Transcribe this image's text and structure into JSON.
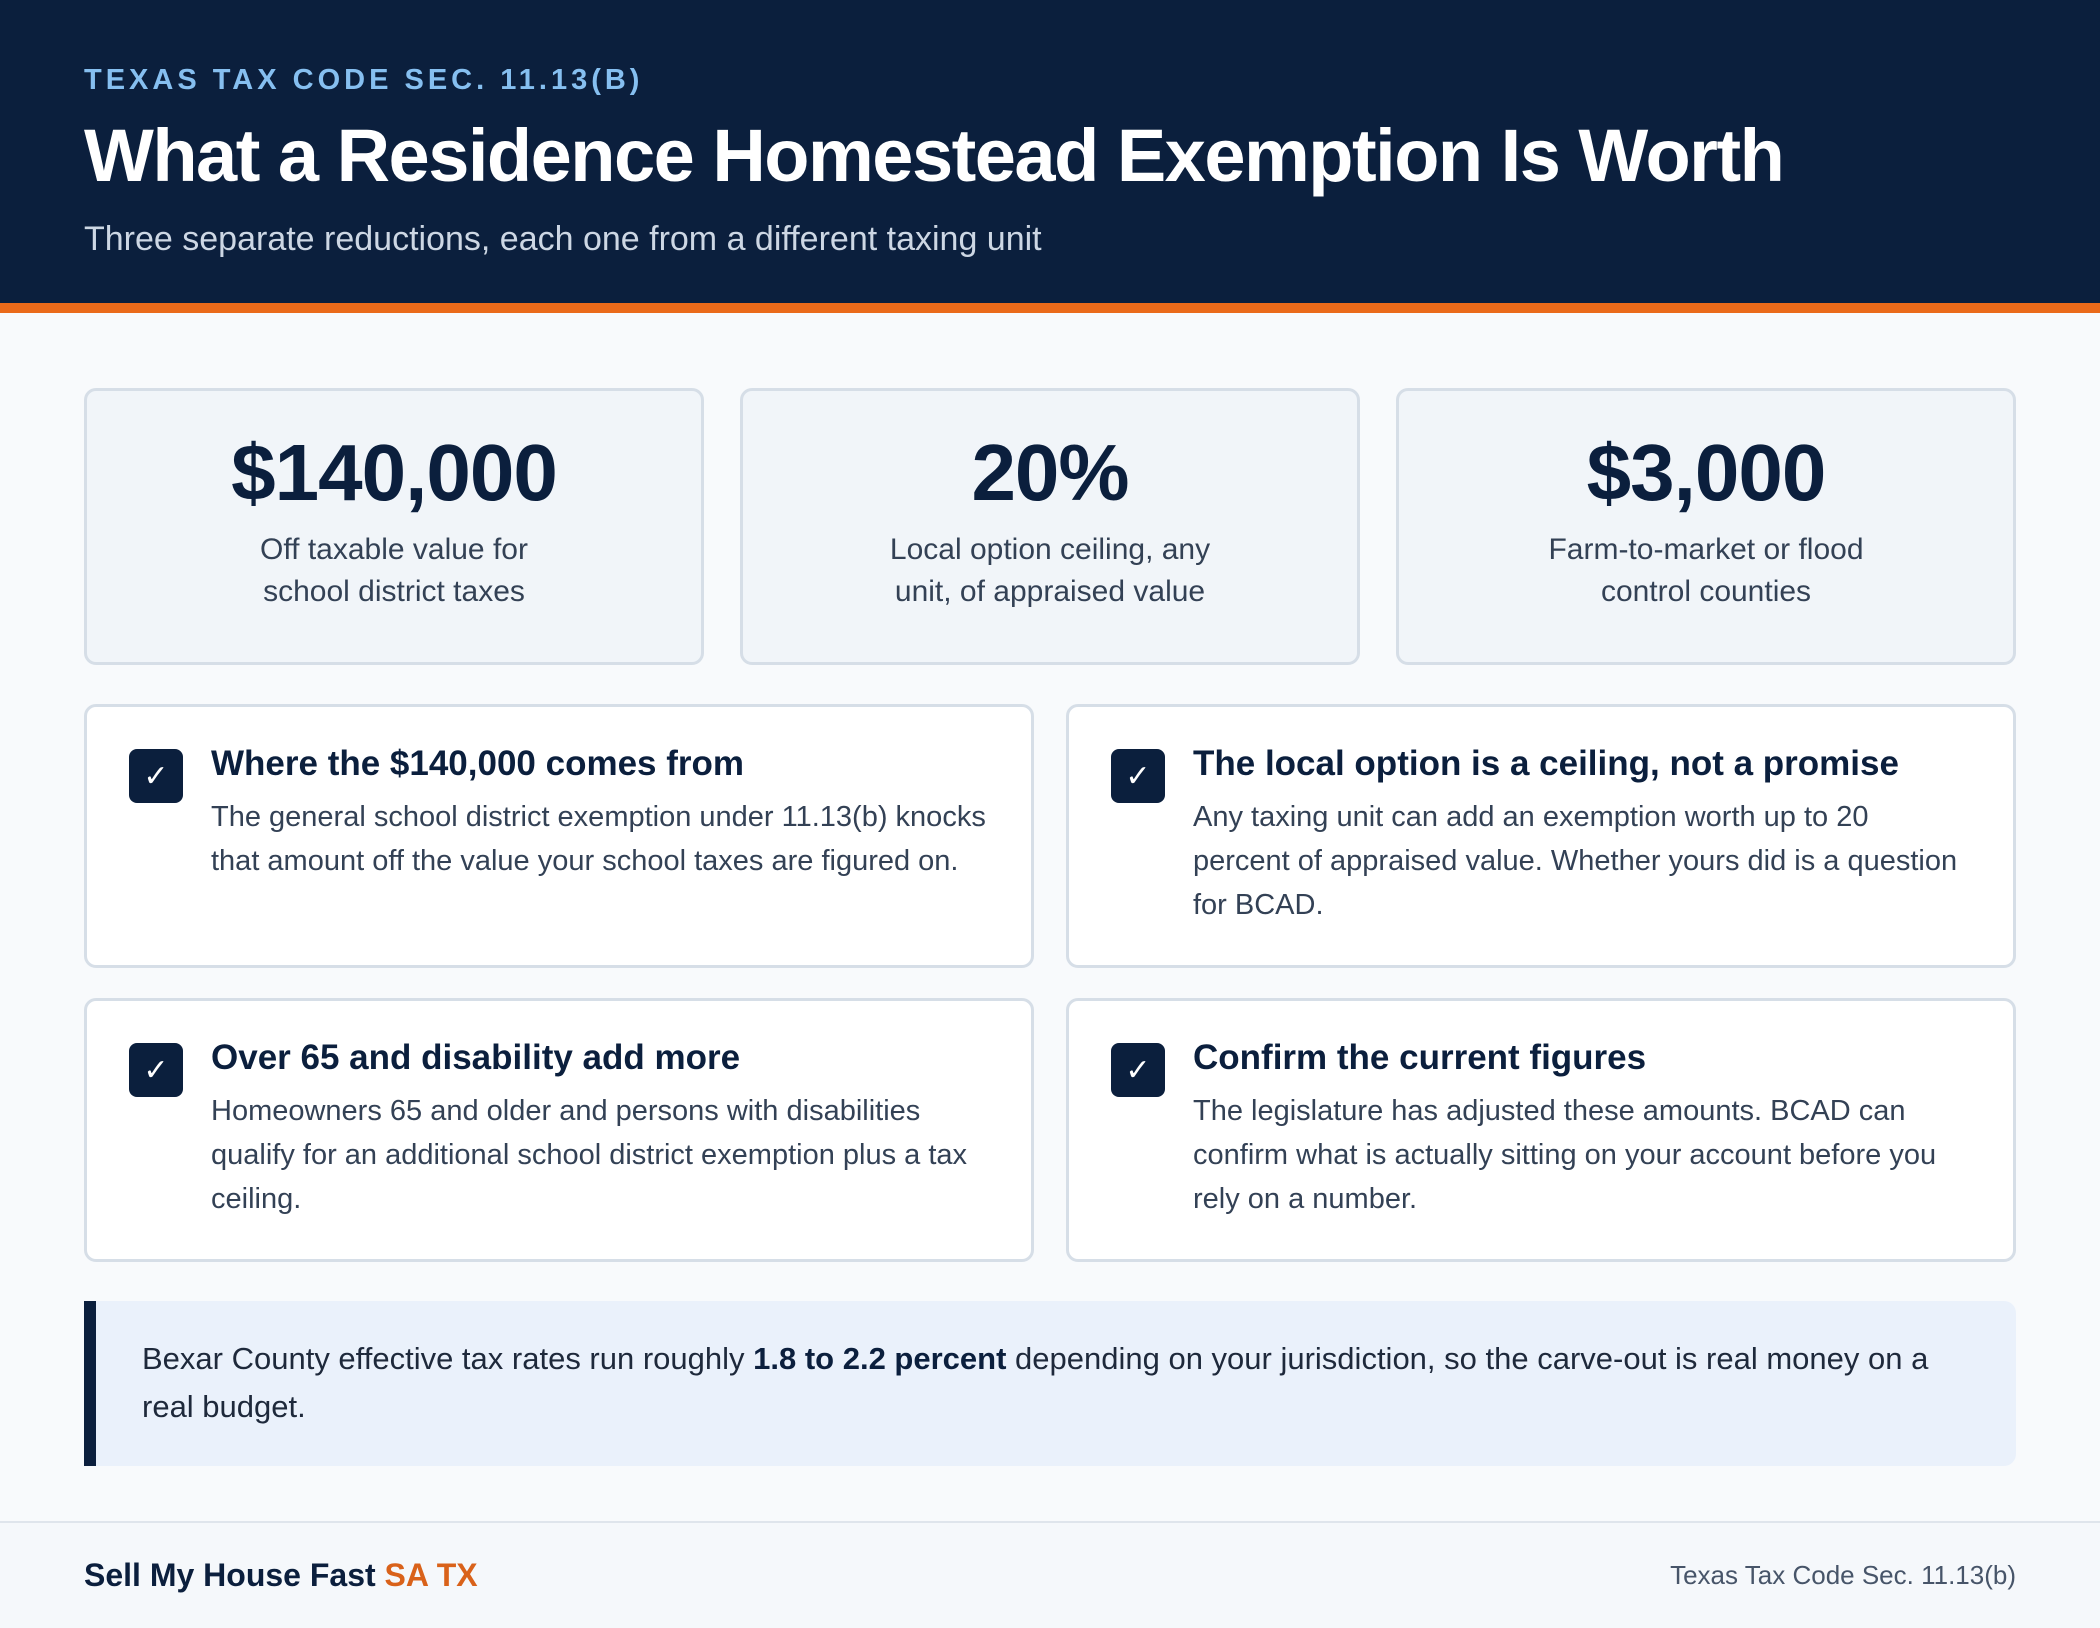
{
  "header": {
    "eyebrow": "TEXAS TAX CODE SEC. 11.13(B)",
    "title": "What a Residence Homestead Exemption Is Worth",
    "subtitle": "Three separate reductions, each one from a different taxing unit"
  },
  "stats": [
    {
      "value": "$140,000",
      "label": "Off taxable value for school district taxes"
    },
    {
      "value": "20%",
      "label": "Local option ceiling, any unit, of appraised value"
    },
    {
      "value": "$3,000",
      "label": "Farm-to-market or flood control counties"
    }
  ],
  "cards": [
    {
      "title": "Where the $140,000 comes from",
      "body": "The general school district exemption under 11.13(b) knocks that amount off the value your school taxes are figured on."
    },
    {
      "title": "The local option is a ceiling, not a promise",
      "body": "Any taxing unit can add an exemption worth up to 20 percent of appraised value. Whether yours did is a question for BCAD."
    },
    {
      "title": "Over 65 and disability add more",
      "body": "Homeowners 65 and older and persons with disabilities qualify for an additional school district exemption plus a tax ceiling."
    },
    {
      "title": "Confirm the current figures",
      "body": "The legislature has adjusted these amounts. BCAD can confirm what is actually sitting on your account before you rely on a number."
    }
  ],
  "check_glyph": "✓",
  "callout": {
    "text_before": "Bexar County effective tax rates run roughly ",
    "emphasis": "1.8 to 2.2 percent",
    "text_after": " depending on your jurisdiction, so the carve-out is real money on a real budget."
  },
  "footer": {
    "brand_main": "Sell My House Fast ",
    "brand_accent": "SA TX",
    "reference": "Texas Tax Code Sec. 11.13(b)"
  },
  "colors": {
    "navy": "#0b1f3d",
    "orange_accent": "#ea6a1a",
    "eyebrow_blue": "#86bff0"
  }
}
